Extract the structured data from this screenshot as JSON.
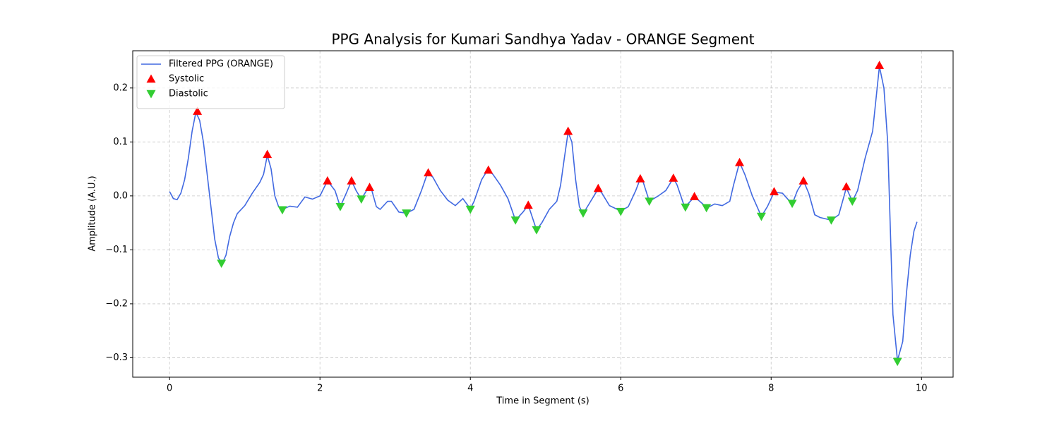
{
  "chart_data": {
    "type": "line",
    "title": "PPG Analysis for Kumari Sandhya Yadav - ORANGE Segment",
    "x_label": "Time in Segment (s)",
    "y_label": "Amplitude (A.U.)",
    "xlim": [
      -0.49,
      10.42
    ],
    "ylim": [
      -0.336,
      0.269
    ],
    "xticks": [
      0,
      2,
      4,
      6,
      8,
      10
    ],
    "yticks": [
      {
        "value": -0.3,
        "label": "−0.3"
      },
      {
        "value": -0.2,
        "label": "−0.2"
      },
      {
        "value": -0.1,
        "label": "−0.1"
      },
      {
        "value": 0,
        "label": "0.0"
      },
      0.1,
      0.2
    ],
    "grid": true,
    "legend": "upper left",
    "series": [
      {
        "name": "Filtered PPG (ORANGE)",
        "type": "line",
        "color": "#4169e1",
        "x": [
          0,
          0.05,
          0.1,
          0.15,
          0.2,
          0.25,
          0.3,
          0.35,
          0.4,
          0.45,
          0.5,
          0.55,
          0.6,
          0.65,
          0.7,
          0.75,
          0.8,
          0.85,
          0.9,
          1.0,
          1.1,
          1.2,
          1.25,
          1.3,
          1.35,
          1.4,
          1.45,
          1.5,
          1.6,
          1.7,
          1.8,
          1.9,
          2.0,
          2.1,
          2.2,
          2.27,
          2.35,
          2.42,
          2.48,
          2.55,
          2.62,
          2.68,
          2.75,
          2.8,
          2.9,
          2.95,
          3.05,
          3.15,
          3.25,
          3.35,
          3.43,
          3.5,
          3.6,
          3.7,
          3.8,
          3.9,
          4.0,
          4.05,
          4.15,
          4.23,
          4.3,
          4.4,
          4.5,
          4.6,
          4.7,
          4.77,
          4.88,
          4.95,
          5.05,
          5.15,
          5.2,
          5.25,
          5.3,
          5.35,
          5.4,
          5.45,
          5.5,
          5.6,
          5.7,
          5.75,
          5.85,
          6.0,
          6.1,
          6.2,
          6.26,
          6.3,
          6.38,
          6.5,
          6.6,
          6.7,
          6.75,
          6.85,
          6.98,
          7.05,
          7.15,
          7.25,
          7.35,
          7.45,
          7.5,
          7.58,
          7.65,
          7.75,
          7.87,
          7.95,
          8.04,
          8.15,
          8.28,
          8.35,
          8.43,
          8.5,
          8.58,
          8.65,
          8.8,
          8.9,
          9.0,
          9.08,
          9.15,
          9.25,
          9.35,
          9.44,
          9.5,
          9.55,
          9.62,
          9.68,
          9.75,
          9.8,
          9.85,
          9.9,
          9.94
        ],
        "values": [
          0.008,
          -0.005,
          -0.007,
          0.005,
          0.03,
          0.07,
          0.12,
          0.155,
          0.14,
          0.1,
          0.04,
          -0.02,
          -0.08,
          -0.115,
          -0.125,
          -0.11,
          -0.075,
          -0.05,
          -0.033,
          -0.018,
          0.005,
          0.025,
          0.04,
          0.075,
          0.05,
          0.0,
          -0.02,
          -0.025,
          -0.019,
          -0.021,
          -0.002,
          -0.006,
          0.0,
          0.028,
          0.01,
          -0.02,
          0.005,
          0.028,
          0.01,
          -0.006,
          0.01,
          0.015,
          -0.02,
          -0.025,
          -0.01,
          -0.01,
          -0.03,
          -0.032,
          -0.025,
          0.01,
          0.042,
          0.035,
          0.01,
          -0.008,
          -0.018,
          -0.005,
          -0.024,
          -0.01,
          0.03,
          0.048,
          0.04,
          0.02,
          -0.005,
          -0.045,
          -0.03,
          -0.017,
          -0.063,
          -0.05,
          -0.025,
          -0.01,
          0.02,
          0.07,
          0.118,
          0.1,
          0.03,
          -0.02,
          -0.033,
          -0.01,
          0.013,
          0.005,
          -0.018,
          -0.028,
          -0.02,
          0.01,
          0.032,
          0.025,
          -0.01,
          0.0,
          0.01,
          0.033,
          0.02,
          -0.021,
          -0.002,
          -0.01,
          -0.022,
          -0.015,
          -0.018,
          -0.01,
          0.02,
          0.062,
          0.04,
          0.0,
          -0.038,
          -0.02,
          0.007,
          0.005,
          -0.015,
          0.01,
          0.028,
          0.005,
          -0.035,
          -0.04,
          -0.045,
          -0.035,
          0.015,
          -0.01,
          0.01,
          0.07,
          0.12,
          0.24,
          0.2,
          0.1,
          -0.22,
          -0.305,
          -0.27,
          -0.18,
          -0.11,
          -0.065,
          -0.048
        ]
      },
      {
        "name": "Systolic",
        "type": "scatter",
        "marker": "triangle-up",
        "color": "#ff0000",
        "x": [
          0.37,
          1.3,
          2.1,
          2.42,
          2.66,
          3.44,
          4.24,
          4.77,
          5.3,
          5.7,
          6.26,
          6.7,
          6.98,
          7.58,
          8.04,
          8.43,
          9.0,
          9.44
        ],
        "values": [
          0.157,
          0.077,
          0.028,
          0.028,
          0.016,
          0.043,
          0.048,
          -0.017,
          0.12,
          0.014,
          0.032,
          0.033,
          -0.001,
          0.062,
          0.008,
          0.028,
          0.017,
          0.242
        ]
      },
      {
        "name": "Diastolic",
        "type": "scatter",
        "marker": "triangle-down",
        "color": "#32cd32",
        "x": [
          0.69,
          1.5,
          2.27,
          2.55,
          3.15,
          4.0,
          4.6,
          4.88,
          5.5,
          6.0,
          6.38,
          6.86,
          7.14,
          7.87,
          8.28,
          8.8,
          9.08,
          9.68
        ],
        "values": [
          -0.125,
          -0.026,
          -0.02,
          -0.006,
          -0.032,
          -0.025,
          -0.045,
          -0.063,
          -0.032,
          -0.029,
          -0.01,
          -0.021,
          -0.022,
          -0.038,
          -0.014,
          -0.045,
          -0.01,
          -0.307
        ]
      }
    ]
  }
}
